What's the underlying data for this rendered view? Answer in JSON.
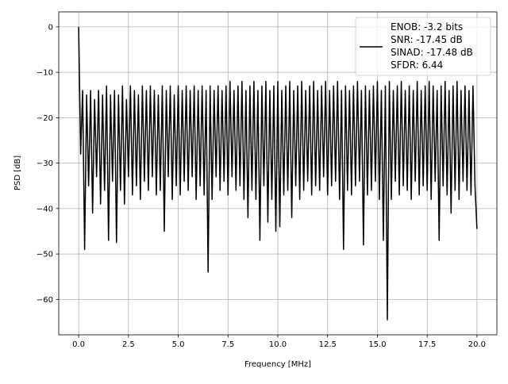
{
  "chart_data": {
    "type": "line",
    "title": "",
    "xlabel": "Frequency [MHz]",
    "ylabel": "PSD [dB]",
    "xlim": [
      -1.0,
      21.0
    ],
    "ylim": [
      -67.8,
      3.3
    ],
    "grid": true,
    "xticks": [
      0,
      2.5,
      5,
      7.5,
      10,
      12.5,
      15,
      17.5,
      20
    ],
    "xtick_labels": [
      "0.0",
      "2.5",
      "5.0",
      "7.5",
      "10.0",
      "12.5",
      "15.0",
      "17.5",
      "20.0"
    ],
    "yticks": [
      0,
      -10,
      -20,
      -30,
      -40,
      -50,
      -60
    ],
    "ytick_labels": [
      "0",
      "−10",
      "−20",
      "−30",
      "−40",
      "−50",
      "−60"
    ],
    "legend": {
      "placement": "top-right",
      "entries": [
        "ENOB: -3.2 bits",
        "SNR: -17.45 dB",
        "SINAD: -17.48 dB",
        "SFDR: 6.44"
      ]
    },
    "series": [
      {
        "name": "PSD",
        "color": "#000000",
        "x_start": 0,
        "x_step": 0.1,
        "values": [
          0,
          -28,
          -14,
          -49,
          -15,
          -35,
          -14,
          -41,
          -16,
          -33,
          -14,
          -39,
          -15,
          -36,
          -13,
          -47,
          -15,
          -34,
          -14,
          -47.5,
          -15,
          -36,
          -13,
          -39,
          -16,
          -33,
          -13,
          -37,
          -14,
          -35,
          -15,
          -38,
          -13,
          -34,
          -14,
          -36,
          -13,
          -33,
          -14,
          -37,
          -15,
          -36,
          -13,
          -45,
          -14,
          -33,
          -13,
          -38,
          -15,
          -35,
          -13,
          -37,
          -14,
          -34,
          -13,
          -36,
          -14,
          -33,
          -13,
          -38,
          -14,
          -35,
          -13,
          -37,
          -14,
          -54,
          -13,
          -38,
          -14,
          -33,
          -13,
          -36,
          -14,
          -34,
          -13,
          -37,
          -12,
          -33,
          -14,
          -36,
          -13,
          -35,
          -12,
          -38,
          -14,
          -42,
          -13,
          -36,
          -12,
          -38,
          -14,
          -47,
          -13,
          -35,
          -12,
          -43,
          -14,
          -38,
          -13,
          -45,
          -12,
          -44,
          -14,
          -37,
          -13,
          -36,
          -12,
          -42,
          -14,
          -35,
          -13,
          -38,
          -12,
          -36,
          -14,
          -34,
          -13,
          -37,
          -12,
          -35,
          -14,
          -36,
          -13,
          -33,
          -12,
          -37,
          -14,
          -35,
          -13,
          -34,
          -12,
          -38,
          -14,
          -49,
          -13,
          -36,
          -14,
          -37,
          -13,
          -35,
          -12,
          -34,
          -14,
          -48,
          -13,
          -37,
          -14,
          -36,
          -13,
          -34,
          -12,
          -38,
          -14,
          -47,
          -13,
          -64.5,
          -12,
          -38,
          -14,
          -34,
          -13,
          -37,
          -12,
          -35,
          -14,
          -36,
          -13,
          -38,
          -14,
          -34,
          -12,
          -37,
          -14,
          -35,
          -13,
          -36,
          -12,
          -38,
          -13,
          -34,
          -14,
          -47,
          -13,
          -35,
          -12,
          -37,
          -14,
          -41,
          -13,
          -36,
          -12,
          -38,
          -14,
          -34,
          -13,
          -36,
          -14,
          -37,
          -13,
          -35,
          -44.5
        ]
      }
    ]
  }
}
